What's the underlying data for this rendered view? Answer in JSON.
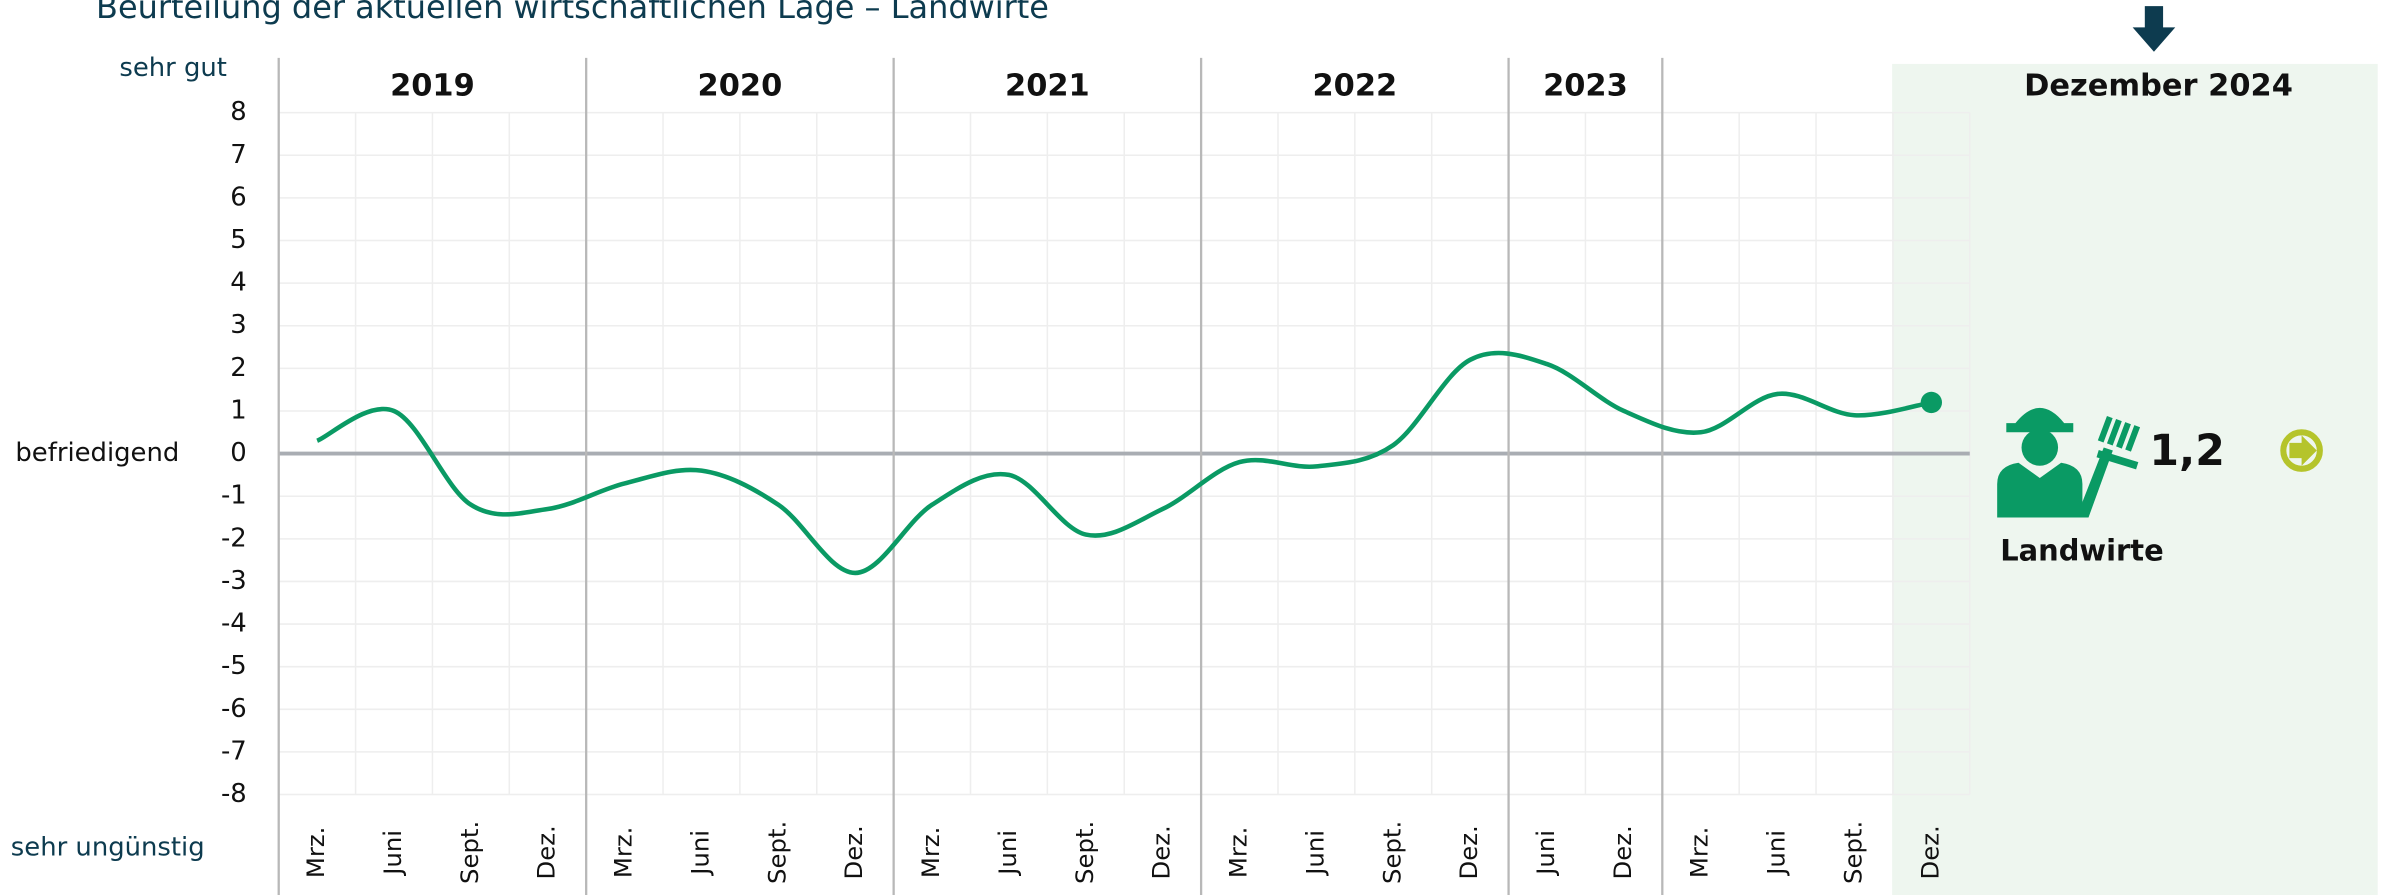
{
  "chart_data": {
    "type": "line",
    "title": "Beurteilung der aktuellen wirtschaftlichen Lage – Landwirte",
    "y_top_label": "sehr gut",
    "y_mid_label": "befriedigend",
    "y_bottom_label": "sehr ungünstig",
    "year_labels": [
      "2019",
      "2020",
      "2021",
      "2022",
      "2023"
    ],
    "highlight_label": "Dezember 2024",
    "categories": [
      "Mrz.",
      "Juni",
      "Sept.",
      "Dez.",
      "Mrz.",
      "Juni",
      "Sept.",
      "Dez.",
      "Mrz.",
      "Juni",
      "Sept.",
      "Dez.",
      "Mrz.",
      "Juni",
      "Sept.",
      "Dez.",
      "Juni",
      "Dez.",
      "Mrz.",
      "Juni",
      "Sept.",
      "Dez."
    ],
    "series": [
      {
        "name": "Landwirte",
        "color": "#0a9a64",
        "values": [
          0.3,
          1.0,
          -1.2,
          -1.3,
          -0.7,
          -0.4,
          -1.2,
          -2.8,
          -1.2,
          -0.5,
          -1.9,
          -1.3,
          -0.2,
          -0.3,
          0.2,
          2.2,
          2.1,
          1.0,
          0.5,
          1.4,
          0.9,
          1.2
        ],
        "value_labels": [
          null,
          null,
          null,
          null,
          null,
          null,
          null,
          null,
          null,
          null,
          null,
          null,
          null,
          null,
          null,
          null,
          null,
          null,
          null,
          null,
          null,
          "1,2"
        ]
      }
    ],
    "ylim": [
      -8,
      8
    ],
    "yticks": [
      -8,
      -7,
      -6,
      -5,
      -4,
      -3,
      -2,
      -1,
      0,
      1,
      2,
      3,
      4,
      5,
      6,
      7,
      8
    ],
    "grid": true
  }
}
